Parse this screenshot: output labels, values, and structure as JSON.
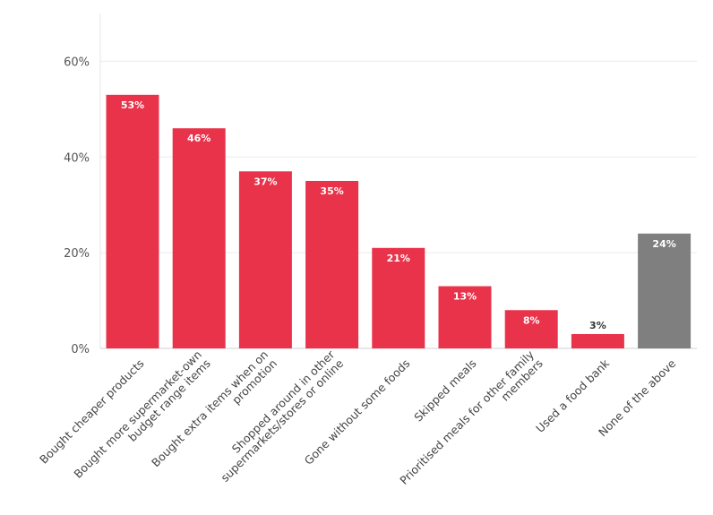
{
  "chart_data": {
    "type": "bar",
    "title": "",
    "xlabel": "",
    "ylabel": "",
    "ylim": [
      0,
      70
    ],
    "yticks": [
      0,
      20,
      40,
      60
    ],
    "ytick_labels": [
      "0%",
      "20%",
      "40%",
      "60%"
    ],
    "grid": true,
    "categories": [
      [
        "Bought cheaper products"
      ],
      [
        "Bought more supermarket-own",
        "budget range items"
      ],
      [
        "Bought extra items when on",
        "promotion"
      ],
      [
        "Shopped around in other",
        "supermarkets/stores or online"
      ],
      [
        "Gone without some foods"
      ],
      [
        "Skipped meals"
      ],
      [
        "Prioritised meals for other family",
        "members"
      ],
      [
        "Used a food bank"
      ],
      [
        "None of the above"
      ]
    ],
    "values": [
      53,
      46,
      37,
      35,
      21,
      13,
      8,
      3,
      24
    ],
    "value_labels": [
      "53%",
      "46%",
      "37%",
      "35%",
      "21%",
      "13%",
      "8%",
      "3%",
      "24%"
    ],
    "colors": [
      "#e8334a",
      "#e8334a",
      "#e8334a",
      "#e8334a",
      "#e8334a",
      "#e8334a",
      "#e8334a",
      "#e8334a",
      "#7f7f7f"
    ]
  }
}
